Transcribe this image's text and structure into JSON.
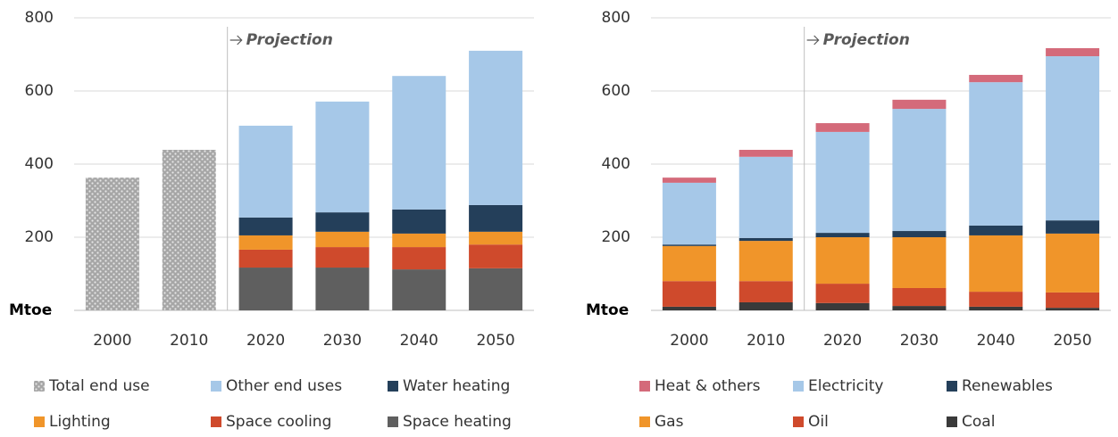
{
  "chart_data": [
    {
      "type": "stacked_bar",
      "y_label": "Mtoe",
      "annotation": "Projection",
      "categories": [
        "2000",
        "2010",
        "2020",
        "2030",
        "2040",
        "2050"
      ],
      "ylim": [
        0,
        800
      ],
      "yticks": [
        200,
        400,
        600,
        800
      ],
      "grid": true,
      "series": [
        {
          "name": "Total end use",
          "color": "#a6a6a6",
          "pattern": "dotted",
          "values": [
            363,
            439,
            null,
            null,
            null,
            null
          ]
        },
        {
          "name": "Other end uses",
          "color": "#a6c8e8",
          "values": [
            null,
            null,
            251,
            303,
            365,
            422
          ]
        },
        {
          "name": "Water heating",
          "color": "#243f5a",
          "values": [
            null,
            null,
            49,
            53,
            66,
            73
          ]
        },
        {
          "name": "Lighting",
          "color": "#f0952a",
          "values": [
            null,
            null,
            39,
            42,
            37,
            35
          ]
        },
        {
          "name": "Space cooling",
          "color": "#cf4a2c",
          "values": [
            null,
            null,
            49,
            56,
            61,
            65
          ]
        },
        {
          "name": "Space heating",
          "color": "#5f5f5f",
          "values": [
            null,
            null,
            117,
            117,
            112,
            115
          ]
        }
      ]
    },
    {
      "type": "stacked_bar",
      "y_label": "Mtoe",
      "annotation": "Projection",
      "categories": [
        "2000",
        "2010",
        "2020",
        "2030",
        "2040",
        "2050"
      ],
      "ylim": [
        0,
        800
      ],
      "yticks": [
        200,
        400,
        600,
        800
      ],
      "grid": true,
      "series": [
        {
          "name": "Heat & others",
          "color": "#d46a7a",
          "values": [
            14,
            19,
            24,
            25,
            20,
            22
          ]
        },
        {
          "name": "Electricity",
          "color": "#a6c8e8",
          "values": [
            169,
            222,
            276,
            334,
            392,
            449
          ]
        },
        {
          "name": "Renewables",
          "color": "#243f5a",
          "values": [
            4,
            8,
            12,
            17,
            27,
            36
          ]
        },
        {
          "name": "Gas",
          "color": "#f0952a",
          "values": [
            96,
            110,
            127,
            139,
            154,
            161
          ]
        },
        {
          "name": "Oil",
          "color": "#cf4a2c",
          "values": [
            70,
            58,
            53,
            49,
            41,
            42
          ]
        },
        {
          "name": "Coal",
          "color": "#3a3a3a",
          "values": [
            10,
            22,
            20,
            12,
            10,
            7
          ]
        }
      ]
    }
  ]
}
